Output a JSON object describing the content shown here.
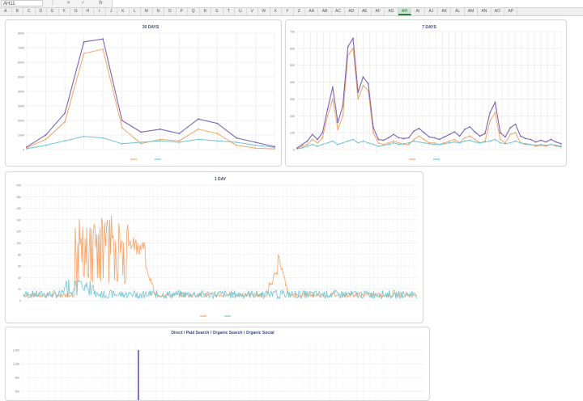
{
  "formula_bar": {
    "name_box": "AH11",
    "cancel_icon": "✕",
    "enter_icon": "✓",
    "fx_label": "fx"
  },
  "columns": [
    "A",
    "B",
    "C",
    "D",
    "E",
    "F",
    "G",
    "H",
    "I",
    "J",
    "K",
    "L",
    "M",
    "N",
    "O",
    "P",
    "Q",
    "R",
    "S",
    "T",
    "U",
    "V",
    "W",
    "X",
    "Y",
    "Z",
    "AA",
    "AB",
    "AC",
    "AD",
    "AE",
    "AF",
    "AG",
    "AH",
    "AI",
    "AJ",
    "AK",
    "AL",
    "AM",
    "AN",
    "AO",
    "AP"
  ],
  "active_column": "AH",
  "colors": {
    "series_a": "#f2a466",
    "series_b": "#6fc4d4",
    "series_total": "#7b63b8",
    "grid": "#e6e6e6",
    "title": "#3a4a7a"
  },
  "chart_data": [
    {
      "id": "chart-30-days",
      "type": "line",
      "title": "30 DAYS",
      "ylim": [
        0,
        8000
      ],
      "yticks": [
        "0",
        "1000",
        "2000",
        "3000",
        "4000",
        "5000",
        "6000",
        "7000",
        "8000"
      ],
      "series": [
        {
          "values": [
            120,
            700,
            1900,
            6600,
            6900,
            1500,
            400,
            700,
            600,
            1400,
            1100,
            300,
            100,
            50
          ]
        },
        {
          "values": [
            60,
            300,
            600,
            900,
            800,
            400,
            500,
            600,
            500,
            700,
            600,
            500,
            300,
            150
          ]
        },
        {
          "values": [
            180,
            1000,
            2500,
            7400,
            7600,
            2000,
            1200,
            1400,
            1100,
            2100,
            1800,
            800,
            500,
            200
          ]
        }
      ]
    },
    {
      "id": "chart-7-days",
      "type": "line",
      "title": "7 DAYS",
      "ylim": [
        0,
        700
      ],
      "yticks": [
        "0",
        "100",
        "200",
        "300",
        "400",
        "500",
        "600",
        "700"
      ],
      "series": [
        {
          "values": [
            5,
            20,
            30,
            60,
            40,
            70,
            200,
            300,
            120,
            200,
            560,
            600,
            300,
            380,
            350,
            100,
            40,
            30,
            40,
            50,
            40,
            30,
            30,
            60,
            80,
            60,
            40,
            40,
            30,
            40,
            50,
            60,
            40,
            70,
            80,
            60,
            40,
            50,
            170,
            220,
            60,
            40,
            90,
            100,
            40,
            30,
            30,
            20,
            25,
            20,
            30,
            20,
            15
          ]
        },
        {
          "values": [
            5,
            10,
            20,
            30,
            20,
            30,
            40,
            50,
            30,
            40,
            50,
            60,
            40,
            50,
            40,
            30,
            20,
            25,
            30,
            40,
            30,
            35,
            40,
            50,
            45,
            40,
            35,
            30,
            30,
            35,
            40,
            45,
            40,
            50,
            55,
            45,
            40,
            45,
            50,
            60,
            40,
            35,
            40,
            50,
            40,
            35,
            30,
            25,
            30,
            25,
            30,
            25,
            20
          ]
        },
        {
          "values": [
            10,
            30,
            50,
            90,
            60,
            100,
            240,
            370,
            160,
            260,
            610,
            660,
            340,
            430,
            390,
            130,
            60,
            55,
            70,
            90,
            70,
            65,
            70,
            110,
            125,
            100,
            75,
            70,
            60,
            75,
            90,
            105,
            80,
            120,
            135,
            105,
            80,
            95,
            220,
            280,
            100,
            75,
            130,
            150,
            80,
            65,
            60,
            45,
            55,
            45,
            60,
            45,
            35
          ]
        }
      ]
    },
    {
      "id": "chart-1-day",
      "type": "line",
      "title": "1 DAY",
      "ylim": [
        0,
        200
      ],
      "yticks": [
        "0",
        "20",
        "40",
        "60",
        "80",
        "100",
        "120",
        "140",
        "160",
        "180",
        "200"
      ]
    },
    {
      "id": "chart-channels",
      "type": "bar",
      "title": "Direct / Paid Search / Organic Search / Organic Social",
      "ylim": [
        0,
        1350
      ],
      "yticks": [
        "1,200",
        "1,050",
        "900",
        "750"
      ],
      "bar_value": 1200
    }
  ]
}
